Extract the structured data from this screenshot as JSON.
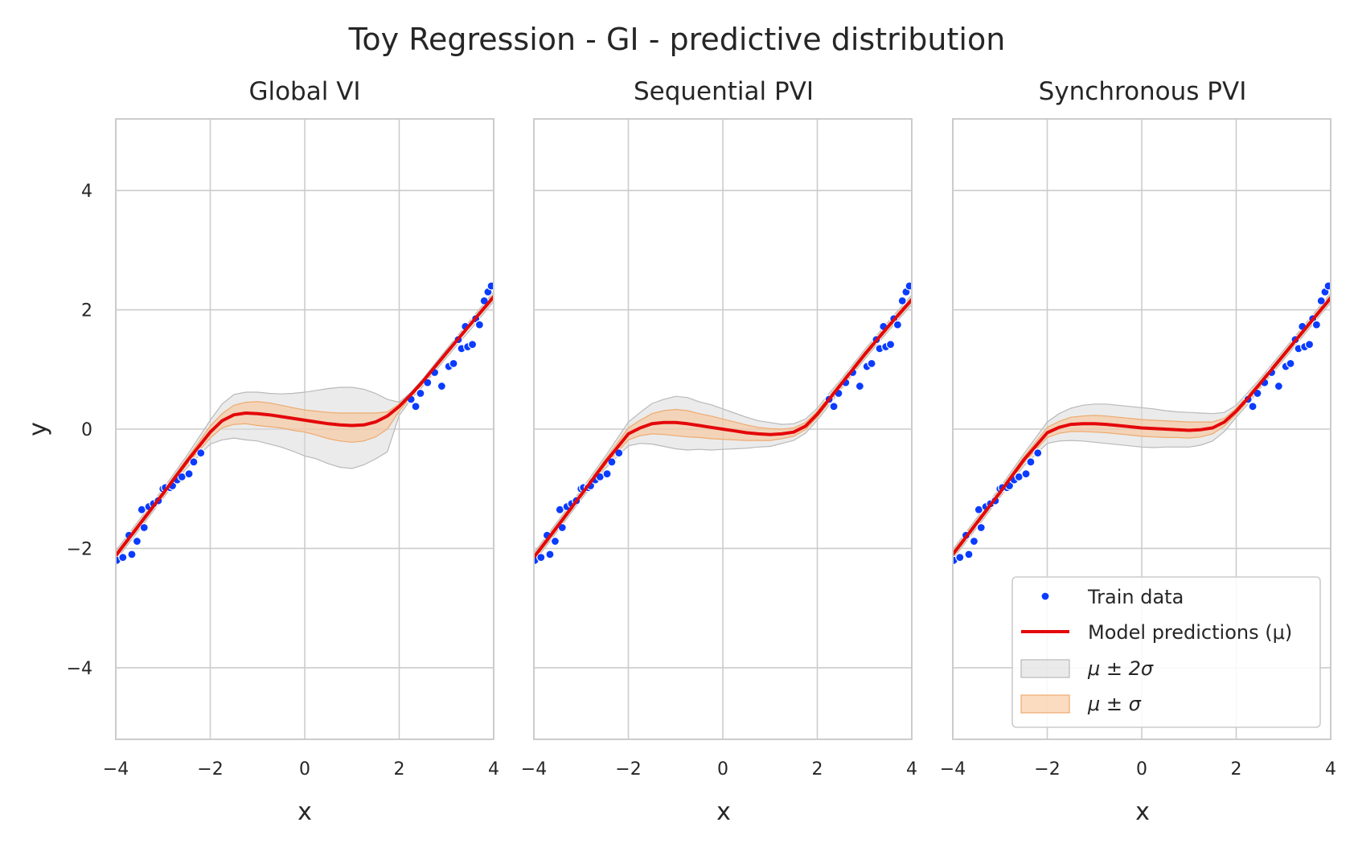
{
  "figure": {
    "suptitle": "Toy Regression - GI - predictive distribution"
  },
  "colors": {
    "train": "#0a3cff",
    "train_edge": "#ffffff",
    "mean": "#e4080a",
    "band2_fill": "#d8d8d8",
    "band2_edge": "#b9b9b9",
    "band1_fill": "#f9c598",
    "band1_edge": "#eeaa6e",
    "grid": "#cccccc",
    "spine": "#cccccc"
  },
  "legend": {
    "panel": 2,
    "placement": "lower right",
    "entries": [
      {
        "kind": "scatter",
        "label": "Train data"
      },
      {
        "kind": "line",
        "label": "Model predictions (μ)"
      },
      {
        "kind": "band2",
        "label": "μ ± 2σ"
      },
      {
        "kind": "band1",
        "label": "μ ± σ"
      }
    ]
  },
  "chart_data": [
    {
      "type": "line",
      "title": "Global VI",
      "xlabel": "x",
      "ylabel": "y",
      "xlim": [
        -4,
        4
      ],
      "ylim": [
        -5.2,
        5.2
      ],
      "xticks": [
        -4,
        -2,
        0,
        2,
        4
      ],
      "yticks": [
        -4,
        -2,
        0,
        2,
        4
      ],
      "xticklabels": [
        "−4",
        "−2",
        "0",
        "2",
        "4"
      ],
      "yticklabels": [
        "−4",
        "−2",
        "0",
        "2",
        "4"
      ],
      "grid": true,
      "train_data": {
        "x": [
          -3.98,
          -3.85,
          -3.72,
          -3.66,
          -3.55,
          -3.45,
          -3.4,
          -3.3,
          -3.2,
          -3.1,
          -3.0,
          -2.95,
          -2.85,
          -2.8,
          -2.7,
          -2.6,
          -2.45,
          -2.35,
          -2.2,
          2.25,
          2.35,
          2.45,
          2.6,
          2.75,
          2.9,
          3.05,
          3.15,
          3.25,
          3.32,
          3.4,
          3.45,
          3.55,
          3.62,
          3.7,
          3.8,
          3.88,
          3.95
        ],
        "y": [
          -2.2,
          -2.15,
          -1.78,
          -2.1,
          -1.88,
          -1.35,
          -1.65,
          -1.3,
          -1.25,
          -1.2,
          -1.0,
          -0.98,
          -0.98,
          -0.95,
          -0.85,
          -0.8,
          -0.75,
          -0.55,
          -0.4,
          0.5,
          0.38,
          0.6,
          0.78,
          0.95,
          0.72,
          1.05,
          1.1,
          1.5,
          1.35,
          1.72,
          1.38,
          1.42,
          1.85,
          1.75,
          2.15,
          2.3,
          2.4
        ]
      },
      "x": [
        -4,
        -3.5,
        -3,
        -2.5,
        -2,
        -1.75,
        -1.5,
        -1.25,
        -1,
        -0.75,
        -0.5,
        -0.25,
        0,
        0.25,
        0.5,
        0.75,
        1,
        1.25,
        1.5,
        1.75,
        2,
        2.25,
        2.5,
        3,
        3.5,
        4
      ],
      "series": [
        {
          "name": "Model predictions (μ)",
          "mean": [
            -2.12,
            -1.6,
            -1.08,
            -0.55,
            -0.05,
            0.14,
            0.24,
            0.27,
            0.26,
            0.24,
            0.21,
            0.18,
            0.15,
            0.12,
            0.09,
            0.07,
            0.06,
            0.07,
            0.12,
            0.22,
            0.38,
            0.58,
            0.8,
            1.28,
            1.75,
            2.22
          ],
          "sigma": [
            0.04,
            0.04,
            0.04,
            0.05,
            0.1,
            0.12,
            0.16,
            0.18,
            0.2,
            0.2,
            0.19,
            0.18,
            0.17,
            0.16,
            0.15,
            0.14,
            0.13,
            0.12,
            0.11,
            0.1,
            0.06,
            0.05,
            0.04,
            0.04,
            0.04,
            0.04
          ]
        }
      ],
      "bands": [
        {
          "name": "μ ± 2σ",
          "upper": [
            -2.04,
            -1.52,
            -1.0,
            -0.45,
            0.15,
            0.42,
            0.58,
            0.62,
            0.62,
            0.6,
            0.59,
            0.6,
            0.62,
            0.65,
            0.68,
            0.7,
            0.7,
            0.67,
            0.6,
            0.5,
            0.45,
            0.62,
            0.84,
            1.34,
            1.82,
            2.3
          ],
          "lower": [
            -2.2,
            -1.68,
            -1.16,
            -0.65,
            -0.25,
            -0.18,
            -0.15,
            -0.18,
            -0.2,
            -0.25,
            -0.3,
            -0.37,
            -0.45,
            -0.5,
            -0.58,
            -0.64,
            -0.66,
            -0.6,
            -0.5,
            -0.38,
            0.23,
            0.5,
            0.72,
            1.2,
            1.66,
            2.14
          ]
        },
        {
          "name": "μ ± σ",
          "upper": [
            -2.08,
            -1.56,
            -1.04,
            -0.5,
            0.05,
            0.26,
            0.4,
            0.45,
            0.46,
            0.44,
            0.4,
            0.36,
            0.32,
            0.3,
            0.28,
            0.27,
            0.27,
            0.27,
            0.27,
            0.29,
            0.42,
            0.6,
            0.82,
            1.3,
            1.78,
            2.26
          ],
          "lower": [
            -2.16,
            -1.64,
            -1.12,
            -0.6,
            -0.15,
            0.02,
            0.08,
            0.09,
            0.06,
            0.04,
            0.02,
            -0.02,
            -0.05,
            -0.1,
            -0.16,
            -0.2,
            -0.22,
            -0.2,
            -0.13,
            0.0,
            0.3,
            0.54,
            0.76,
            1.24,
            1.72,
            2.18
          ]
        }
      ]
    },
    {
      "type": "line",
      "title": "Sequential PVI",
      "xlabel": "x",
      "ylabel": "",
      "xlim": [
        -4,
        4
      ],
      "ylim": [
        -5.2,
        5.2
      ],
      "xticks": [
        -4,
        -2,
        0,
        2,
        4
      ],
      "yticks": [
        -4,
        -2,
        0,
        2,
        4
      ],
      "xticklabels": [
        "−4",
        "−2",
        "0",
        "2",
        "4"
      ],
      "yticklabels": [],
      "grid": true,
      "train_data": {
        "x": [
          -3.98,
          -3.85,
          -3.72,
          -3.66,
          -3.55,
          -3.45,
          -3.4,
          -3.3,
          -3.2,
          -3.1,
          -3.0,
          -2.95,
          -2.85,
          -2.8,
          -2.7,
          -2.6,
          -2.45,
          -2.35,
          -2.2,
          2.25,
          2.35,
          2.45,
          2.6,
          2.75,
          2.9,
          3.05,
          3.15,
          3.25,
          3.32,
          3.4,
          3.45,
          3.55,
          3.62,
          3.7,
          3.8,
          3.88,
          3.95
        ],
        "y": [
          -2.2,
          -2.15,
          -1.78,
          -2.1,
          -1.88,
          -1.35,
          -1.65,
          -1.3,
          -1.25,
          -1.2,
          -1.0,
          -0.98,
          -0.98,
          -0.95,
          -0.85,
          -0.8,
          -0.75,
          -0.55,
          -0.4,
          0.5,
          0.38,
          0.6,
          0.78,
          0.95,
          0.72,
          1.05,
          1.1,
          1.5,
          1.35,
          1.72,
          1.38,
          1.42,
          1.85,
          1.75,
          2.15,
          2.3,
          2.4
        ]
      },
      "x": [
        -4,
        -3.5,
        -3,
        -2.5,
        -2,
        -1.75,
        -1.5,
        -1.25,
        -1,
        -0.75,
        -0.5,
        -0.25,
        0,
        0.25,
        0.5,
        0.75,
        1,
        1.25,
        1.5,
        1.75,
        2,
        2.25,
        2.5,
        3,
        3.5,
        4
      ],
      "series": [
        {
          "name": "Model predictions (μ)",
          "mean": [
            -2.15,
            -1.63,
            -1.1,
            -0.57,
            -0.08,
            0.02,
            0.09,
            0.11,
            0.11,
            0.09,
            0.06,
            0.03,
            0.0,
            -0.03,
            -0.06,
            -0.08,
            -0.09,
            -0.08,
            -0.05,
            0.05,
            0.25,
            0.5,
            0.75,
            1.25,
            1.72,
            2.17
          ],
          "sigma": [
            0.04,
            0.04,
            0.04,
            0.05,
            0.1,
            0.13,
            0.17,
            0.2,
            0.22,
            0.22,
            0.2,
            0.19,
            0.17,
            0.15,
            0.13,
            0.11,
            0.1,
            0.08,
            0.07,
            0.06,
            0.05,
            0.05,
            0.04,
            0.04,
            0.04,
            0.04
          ]
        }
      ],
      "bands": [
        {
          "name": "μ ± 2σ",
          "upper": [
            -2.07,
            -1.55,
            -1.02,
            -0.47,
            0.12,
            0.28,
            0.43,
            0.5,
            0.55,
            0.53,
            0.46,
            0.41,
            0.34,
            0.27,
            0.2,
            0.14,
            0.11,
            0.08,
            0.09,
            0.17,
            0.35,
            0.6,
            0.83,
            1.33,
            1.8,
            2.25
          ],
          "lower": [
            -2.23,
            -1.71,
            -1.18,
            -0.67,
            -0.28,
            -0.24,
            -0.25,
            -0.29,
            -0.33,
            -0.35,
            -0.34,
            -0.35,
            -0.34,
            -0.33,
            -0.32,
            -0.3,
            -0.29,
            -0.24,
            -0.19,
            -0.07,
            0.15,
            0.4,
            0.67,
            1.17,
            1.64,
            2.09
          ]
        },
        {
          "name": "μ ± σ",
          "upper": [
            -2.11,
            -1.59,
            -1.06,
            -0.52,
            0.02,
            0.15,
            0.26,
            0.31,
            0.33,
            0.31,
            0.26,
            0.22,
            0.17,
            0.12,
            0.07,
            0.03,
            0.01,
            0.0,
            0.02,
            0.11,
            0.3,
            0.55,
            0.79,
            1.29,
            1.76,
            2.21
          ],
          "lower": [
            -2.19,
            -1.67,
            -1.14,
            -0.62,
            -0.18,
            -0.11,
            -0.08,
            -0.09,
            -0.11,
            -0.13,
            -0.14,
            -0.16,
            -0.17,
            -0.18,
            -0.19,
            -0.19,
            -0.19,
            -0.16,
            -0.12,
            -0.01,
            0.2,
            0.45,
            0.71,
            1.21,
            1.68,
            2.13
          ]
        }
      ]
    },
    {
      "type": "line",
      "title": "Synchronous PVI",
      "xlabel": "x",
      "ylabel": "",
      "xlim": [
        -4,
        4
      ],
      "ylim": [
        -5.2,
        5.2
      ],
      "xticks": [
        -4,
        -2,
        0,
        2,
        4
      ],
      "yticks": [
        -4,
        -2,
        0,
        2,
        4
      ],
      "xticklabels": [
        "−4",
        "−2",
        "0",
        "2",
        "4"
      ],
      "yticklabels": [],
      "grid": true,
      "train_data": {
        "x": [
          -3.98,
          -3.85,
          -3.72,
          -3.66,
          -3.55,
          -3.45,
          -3.4,
          -3.3,
          -3.2,
          -3.1,
          -3.0,
          -2.95,
          -2.85,
          -2.8,
          -2.7,
          -2.6,
          -2.45,
          -2.35,
          -2.2,
          2.25,
          2.35,
          2.45,
          2.6,
          2.75,
          2.9,
          3.05,
          3.15,
          3.25,
          3.32,
          3.4,
          3.45,
          3.55,
          3.62,
          3.7,
          3.8,
          3.88,
          3.95
        ],
        "y": [
          -2.2,
          -2.15,
          -1.78,
          -2.1,
          -1.88,
          -1.35,
          -1.65,
          -1.3,
          -1.25,
          -1.2,
          -1.0,
          -0.98,
          -0.98,
          -0.95,
          -0.85,
          -0.8,
          -0.75,
          -0.55,
          -0.4,
          0.5,
          0.38,
          0.6,
          0.78,
          0.95,
          0.72,
          1.05,
          1.1,
          1.5,
          1.35,
          1.72,
          1.38,
          1.42,
          1.85,
          1.75,
          2.15,
          2.3,
          2.4
        ]
      },
      "x": [
        -4,
        -3.5,
        -3,
        -2.5,
        -2,
        -1.75,
        -1.5,
        -1.25,
        -1,
        -0.75,
        -0.5,
        -0.25,
        0,
        0.25,
        0.5,
        0.75,
        1,
        1.25,
        1.5,
        1.75,
        2,
        2.25,
        2.5,
        3,
        3.5,
        4
      ],
      "series": [
        {
          "name": "Model predictions (μ)",
          "mean": [
            -2.1,
            -1.58,
            -1.06,
            -0.52,
            -0.06,
            0.03,
            0.08,
            0.09,
            0.09,
            0.08,
            0.06,
            0.04,
            0.02,
            0.01,
            0.0,
            -0.01,
            -0.02,
            -0.01,
            0.02,
            0.12,
            0.3,
            0.52,
            0.76,
            1.24,
            1.72,
            2.2
          ],
          "sigma": [
            0.04,
            0.04,
            0.04,
            0.05,
            0.08,
            0.1,
            0.12,
            0.13,
            0.14,
            0.14,
            0.14,
            0.14,
            0.14,
            0.14,
            0.14,
            0.13,
            0.12,
            0.1,
            0.08,
            0.07,
            0.05,
            0.05,
            0.04,
            0.04,
            0.04,
            0.04
          ]
        }
      ],
      "bands": [
        {
          "name": "μ ± 2σ",
          "upper": [
            -2.02,
            -1.5,
            -0.98,
            -0.42,
            0.12,
            0.26,
            0.35,
            0.4,
            0.42,
            0.42,
            0.4,
            0.38,
            0.36,
            0.34,
            0.31,
            0.29,
            0.28,
            0.27,
            0.26,
            0.28,
            0.4,
            0.62,
            0.84,
            1.32,
            1.8,
            2.28
          ],
          "lower": [
            -2.18,
            -1.66,
            -1.14,
            -0.62,
            -0.24,
            -0.2,
            -0.19,
            -0.2,
            -0.22,
            -0.24,
            -0.26,
            -0.28,
            -0.3,
            -0.31,
            -0.3,
            -0.3,
            -0.3,
            -0.27,
            -0.2,
            -0.04,
            0.2,
            0.42,
            0.68,
            1.16,
            1.64,
            2.12
          ]
        },
        {
          "name": "μ ± σ",
          "upper": [
            -2.06,
            -1.54,
            -1.02,
            -0.47,
            0.03,
            0.13,
            0.2,
            0.22,
            0.23,
            0.22,
            0.2,
            0.18,
            0.16,
            0.15,
            0.14,
            0.13,
            0.12,
            0.12,
            0.12,
            0.18,
            0.35,
            0.57,
            0.8,
            1.28,
            1.76,
            2.24
          ],
          "lower": [
            -2.14,
            -1.62,
            -1.1,
            -0.57,
            -0.14,
            -0.07,
            -0.04,
            -0.04,
            -0.05,
            -0.06,
            -0.08,
            -0.1,
            -0.12,
            -0.13,
            -0.14,
            -0.14,
            -0.15,
            -0.13,
            -0.08,
            0.05,
            0.25,
            0.47,
            0.72,
            1.2,
            1.68,
            2.16
          ]
        }
      ]
    }
  ]
}
